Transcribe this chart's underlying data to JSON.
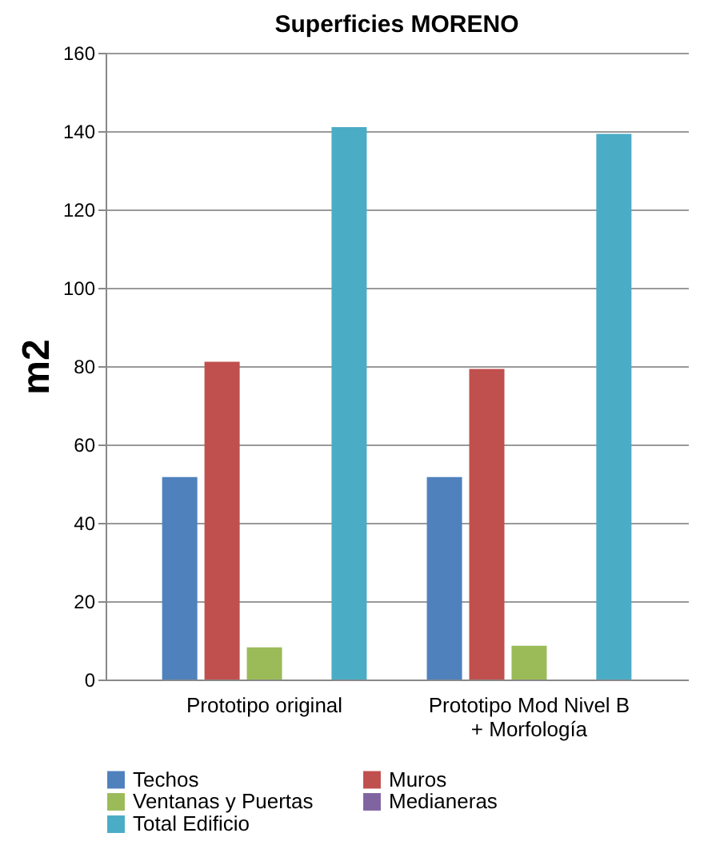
{
  "chart_data": {
    "type": "bar",
    "title": "Superficies MORENO",
    "ylabel": "m2",
    "categories": [
      "Prototipo original",
      "Prototipo Mod Nivel B + Morfología"
    ],
    "series": [
      {
        "name": "Techos",
        "color": "#4f81bd",
        "values": [
          51.7,
          51.7
        ]
      },
      {
        "name": "Muros",
        "color": "#c0504d",
        "values": [
          81.1,
          79.3
        ]
      },
      {
        "name": "Ventanas y Puertas",
        "color": "#9bbb59",
        "values": [
          8.2,
          8.6
        ]
      },
      {
        "name": "Medianeras",
        "color": "#8064a2",
        "values": [
          0,
          0
        ]
      },
      {
        "name": "Total Edificio",
        "color": "#4bacc6",
        "values": [
          141,
          139.3
        ]
      }
    ],
    "ylim": [
      0,
      160
    ],
    "yticks": [
      0,
      20,
      40,
      60,
      80,
      100,
      120,
      140,
      160
    ],
    "grid": "y",
    "legend": "bottom"
  }
}
